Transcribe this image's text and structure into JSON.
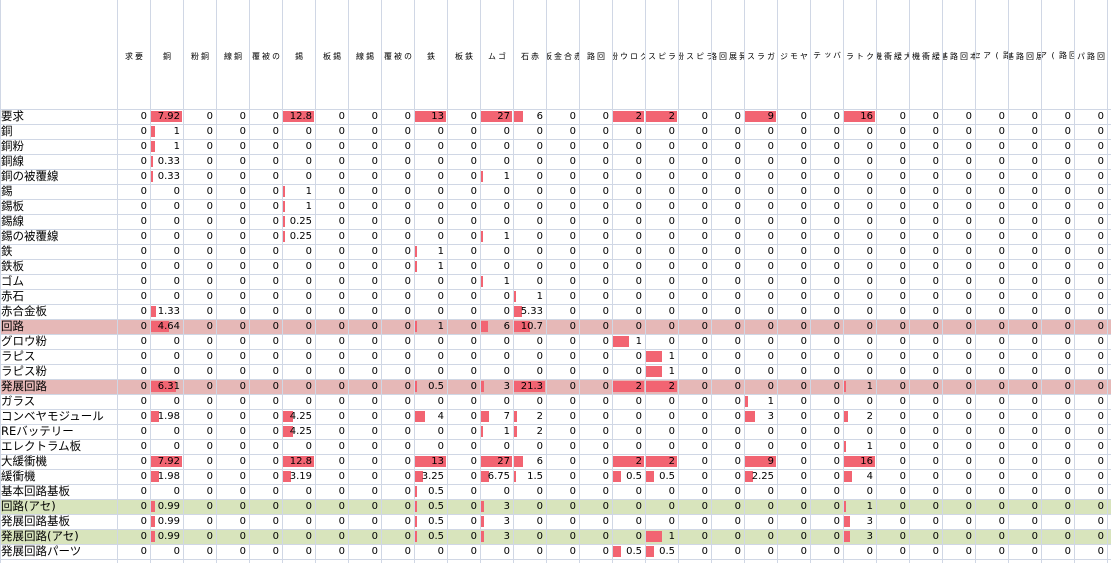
{
  "sheet": {
    "bar_color": "#f26472",
    "highlight_red": "#e6b8b7",
    "highlight_green": "#d8e4bc",
    "grid_color": "#d0d7e5"
  },
  "columns": [
    "要求",
    "銅",
    "銅粉",
    "銅線",
    "銅の被覆線",
    "錫",
    "錫板",
    "錫線",
    "錫の被覆線",
    "鉄",
    "鉄板",
    "ゴム",
    "赤石",
    "赤合金板",
    "回路",
    "グロウ粉",
    "ラピス",
    "ラピス粉",
    "発展回路",
    "ガラス",
    "コンベヤモジュール",
    "REバッテリー",
    "エレクトラム板",
    "大緩衝機",
    "緩衝機",
    "基本回路基板",
    "回路(アセ)",
    "発展回路基板",
    "発展回路(アセ)",
    "発展回路パーツ"
  ],
  "column_headers": [
    "要\n求",
    "銅",
    "銅\n粉",
    "銅\n線",
    "銅\nの\n被\n覆\n線",
    "錫",
    "錫\n板",
    "錫\n線",
    "錫\nの\n被\n覆\n線",
    "鉄",
    "鉄\n板",
    "ゴ\nム",
    "赤\n石",
    "赤\n合\n金\n板",
    "回\n路",
    "グ\nロ\nウ\n粉",
    "ラ\nピ\nス",
    "ラ\nピ\nス\n粉",
    "発\n展\n回\n路",
    "ガ\nラ\nス",
    "コ\nン\nベ\nヤ\nモ\nジ\nュ\nー\nル",
    "R\nE\nバ\nッ\nテ\nリ\nー",
    "エ\nレ\nク\nト\nラ\nム\n板",
    "大\n緩\n衝\n機",
    "緩\n衝\n機",
    "基\n本\n回\n路\n基\n板",
    "回\n路\n(\nア\nセ\n)",
    "発\n展\n回\n路\n基\n板",
    "発\n展\n回\n路\n(\nア\nセ\n)",
    "発\n展\n回\n路\nパ\nー\nツ"
  ],
  "rows": [
    {
      "label": "要求",
      "highlight": "none",
      "values": [
        "0",
        "7.92",
        "0",
        "0",
        "0",
        "12.8",
        "0",
        "0",
        "0",
        "13",
        "0",
        "27",
        "6",
        "0",
        "0",
        "2",
        "2",
        "0",
        "0",
        "9",
        "0",
        "0",
        "16",
        "0",
        "0",
        "0",
        "0",
        "0",
        "0",
        "0"
      ]
    },
    {
      "label": "銅",
      "highlight": "none",
      "values": [
        "0",
        "1",
        "0",
        "0",
        "0",
        "0",
        "0",
        "0",
        "0",
        "0",
        "0",
        "0",
        "0",
        "0",
        "0",
        "0",
        "0",
        "0",
        "0",
        "0",
        "0",
        "0",
        "0",
        "0",
        "0",
        "0",
        "0",
        "0",
        "0",
        "0"
      ]
    },
    {
      "label": "銅粉",
      "highlight": "none",
      "values": [
        "0",
        "1",
        "0",
        "0",
        "0",
        "0",
        "0",
        "0",
        "0",
        "0",
        "0",
        "0",
        "0",
        "0",
        "0",
        "0",
        "0",
        "0",
        "0",
        "0",
        "0",
        "0",
        "0",
        "0",
        "0",
        "0",
        "0",
        "0",
        "0",
        "0"
      ]
    },
    {
      "label": "銅線",
      "highlight": "none",
      "values": [
        "0",
        "0.33",
        "0",
        "0",
        "0",
        "0",
        "0",
        "0",
        "0",
        "0",
        "0",
        "0",
        "0",
        "0",
        "0",
        "0",
        "0",
        "0",
        "0",
        "0",
        "0",
        "0",
        "0",
        "0",
        "0",
        "0",
        "0",
        "0",
        "0",
        "0"
      ]
    },
    {
      "label": "銅の被覆線",
      "highlight": "none",
      "values": [
        "0",
        "0.33",
        "0",
        "0",
        "0",
        "0",
        "0",
        "0",
        "0",
        "0",
        "0",
        "1",
        "0",
        "0",
        "0",
        "0",
        "0",
        "0",
        "0",
        "0",
        "0",
        "0",
        "0",
        "0",
        "0",
        "0",
        "0",
        "0",
        "0",
        "0"
      ]
    },
    {
      "label": "錫",
      "highlight": "none",
      "values": [
        "0",
        "0",
        "0",
        "0",
        "0",
        "1",
        "0",
        "0",
        "0",
        "0",
        "0",
        "0",
        "0",
        "0",
        "0",
        "0",
        "0",
        "0",
        "0",
        "0",
        "0",
        "0",
        "0",
        "0",
        "0",
        "0",
        "0",
        "0",
        "0",
        "0"
      ]
    },
    {
      "label": "錫板",
      "highlight": "none",
      "values": [
        "0",
        "0",
        "0",
        "0",
        "0",
        "1",
        "0",
        "0",
        "0",
        "0",
        "0",
        "0",
        "0",
        "0",
        "0",
        "0",
        "0",
        "0",
        "0",
        "0",
        "0",
        "0",
        "0",
        "0",
        "0",
        "0",
        "0",
        "0",
        "0",
        "0"
      ]
    },
    {
      "label": "錫線",
      "highlight": "none",
      "values": [
        "0",
        "0",
        "0",
        "0",
        "0",
        "0.25",
        "0",
        "0",
        "0",
        "0",
        "0",
        "0",
        "0",
        "0",
        "0",
        "0",
        "0",
        "0",
        "0",
        "0",
        "0",
        "0",
        "0",
        "0",
        "0",
        "0",
        "0",
        "0",
        "0",
        "0"
      ]
    },
    {
      "label": "錫の被覆線",
      "highlight": "none",
      "values": [
        "0",
        "0",
        "0",
        "0",
        "0",
        "0.25",
        "0",
        "0",
        "0",
        "0",
        "0",
        "1",
        "0",
        "0",
        "0",
        "0",
        "0",
        "0",
        "0",
        "0",
        "0",
        "0",
        "0",
        "0",
        "0",
        "0",
        "0",
        "0",
        "0",
        "0"
      ]
    },
    {
      "label": "鉄",
      "highlight": "none",
      "values": [
        "0",
        "0",
        "0",
        "0",
        "0",
        "0",
        "0",
        "0",
        "0",
        "1",
        "0",
        "0",
        "0",
        "0",
        "0",
        "0",
        "0",
        "0",
        "0",
        "0",
        "0",
        "0",
        "0",
        "0",
        "0",
        "0",
        "0",
        "0",
        "0",
        "0"
      ]
    },
    {
      "label": "鉄板",
      "highlight": "none",
      "values": [
        "0",
        "0",
        "0",
        "0",
        "0",
        "0",
        "0",
        "0",
        "0",
        "1",
        "0",
        "0",
        "0",
        "0",
        "0",
        "0",
        "0",
        "0",
        "0",
        "0",
        "0",
        "0",
        "0",
        "0",
        "0",
        "0",
        "0",
        "0",
        "0",
        "0"
      ]
    },
    {
      "label": "ゴム",
      "highlight": "none",
      "values": [
        "0",
        "0",
        "0",
        "0",
        "0",
        "0",
        "0",
        "0",
        "0",
        "0",
        "0",
        "1",
        "0",
        "0",
        "0",
        "0",
        "0",
        "0",
        "0",
        "0",
        "0",
        "0",
        "0",
        "0",
        "0",
        "0",
        "0",
        "0",
        "0",
        "0"
      ]
    },
    {
      "label": "赤石",
      "highlight": "none",
      "values": [
        "0",
        "0",
        "0",
        "0",
        "0",
        "0",
        "0",
        "0",
        "0",
        "0",
        "0",
        "0",
        "1",
        "0",
        "0",
        "0",
        "0",
        "0",
        "0",
        "0",
        "0",
        "0",
        "0",
        "0",
        "0",
        "0",
        "0",
        "0",
        "0",
        "0"
      ]
    },
    {
      "label": "赤合金板",
      "highlight": "none",
      "values": [
        "0",
        "1.33",
        "0",
        "0",
        "0",
        "0",
        "0",
        "0",
        "0",
        "0",
        "0",
        "0",
        "5.33",
        "0",
        "0",
        "0",
        "0",
        "0",
        "0",
        "0",
        "0",
        "0",
        "0",
        "0",
        "0",
        "0",
        "0",
        "0",
        "0",
        "0"
      ]
    },
    {
      "label": "回路",
      "highlight": "red",
      "values": [
        "0",
        "4.64",
        "0",
        "0",
        "0",
        "0",
        "0",
        "0",
        "0",
        "1",
        "0",
        "6",
        "10.7",
        "0",
        "0",
        "0",
        "0",
        "0",
        "0",
        "0",
        "0",
        "0",
        "0",
        "0",
        "0",
        "0",
        "0",
        "0",
        "0",
        "0"
      ]
    },
    {
      "label": "グロウ粉",
      "highlight": "none",
      "values": [
        "0",
        "0",
        "0",
        "0",
        "0",
        "0",
        "0",
        "0",
        "0",
        "0",
        "0",
        "0",
        "0",
        "0",
        "0",
        "1",
        "0",
        "0",
        "0",
        "0",
        "0",
        "0",
        "0",
        "0",
        "0",
        "0",
        "0",
        "0",
        "0",
        "0"
      ]
    },
    {
      "label": "ラピス",
      "highlight": "none",
      "values": [
        "0",
        "0",
        "0",
        "0",
        "0",
        "0",
        "0",
        "0",
        "0",
        "0",
        "0",
        "0",
        "0",
        "0",
        "0",
        "0",
        "1",
        "0",
        "0",
        "0",
        "0",
        "0",
        "0",
        "0",
        "0",
        "0",
        "0",
        "0",
        "0",
        "0"
      ]
    },
    {
      "label": "ラピス粉",
      "highlight": "none",
      "values": [
        "0",
        "0",
        "0",
        "0",
        "0",
        "0",
        "0",
        "0",
        "0",
        "0",
        "0",
        "0",
        "0",
        "0",
        "0",
        "0",
        "1",
        "0",
        "0",
        "0",
        "0",
        "0",
        "0",
        "0",
        "0",
        "0",
        "0",
        "0",
        "0",
        "0"
      ]
    },
    {
      "label": "発展回路",
      "highlight": "red",
      "values": [
        "0",
        "6.31",
        "0",
        "0",
        "0",
        "0",
        "0",
        "0",
        "0",
        "0.5",
        "0",
        "3",
        "21.3",
        "0",
        "0",
        "2",
        "2",
        "0",
        "0",
        "0",
        "0",
        "0",
        "1",
        "0",
        "0",
        "0",
        "0",
        "0",
        "0",
        "0"
      ]
    },
    {
      "label": "ガラス",
      "highlight": "none",
      "values": [
        "0",
        "0",
        "0",
        "0",
        "0",
        "0",
        "0",
        "0",
        "0",
        "0",
        "0",
        "0",
        "0",
        "0",
        "0",
        "0",
        "0",
        "0",
        "0",
        "1",
        "0",
        "0",
        "0",
        "0",
        "0",
        "0",
        "0",
        "0",
        "0",
        "0"
      ]
    },
    {
      "label": "コンベヤモジュール",
      "highlight": "none",
      "values": [
        "0",
        "1.98",
        "0",
        "0",
        "0",
        "4.25",
        "0",
        "0",
        "0",
        "4",
        "0",
        "7",
        "2",
        "0",
        "0",
        "0",
        "0",
        "0",
        "0",
        "3",
        "0",
        "0",
        "2",
        "0",
        "0",
        "0",
        "0",
        "0",
        "0",
        "0"
      ]
    },
    {
      "label": "REバッテリー",
      "highlight": "none",
      "values": [
        "0",
        "0",
        "0",
        "0",
        "0",
        "4.25",
        "0",
        "0",
        "0",
        "0",
        "0",
        "1",
        "2",
        "0",
        "0",
        "0",
        "0",
        "0",
        "0",
        "0",
        "0",
        "0",
        "0",
        "0",
        "0",
        "0",
        "0",
        "0",
        "0",
        "0"
      ]
    },
    {
      "label": "エレクトラム板",
      "highlight": "none",
      "values": [
        "0",
        "0",
        "0",
        "0",
        "0",
        "0",
        "0",
        "0",
        "0",
        "0",
        "0",
        "0",
        "0",
        "0",
        "0",
        "0",
        "0",
        "0",
        "0",
        "0",
        "0",
        "0",
        "1",
        "0",
        "0",
        "0",
        "0",
        "0",
        "0",
        "0"
      ]
    },
    {
      "label": "大緩衝機",
      "highlight": "none",
      "values": [
        "0",
        "7.92",
        "0",
        "0",
        "0",
        "12.8",
        "0",
        "0",
        "0",
        "13",
        "0",
        "27",
        "6",
        "0",
        "0",
        "2",
        "2",
        "0",
        "0",
        "9",
        "0",
        "0",
        "16",
        "0",
        "0",
        "0",
        "0",
        "0",
        "0",
        "0"
      ]
    },
    {
      "label": "緩衝機",
      "highlight": "none",
      "values": [
        "0",
        "1.98",
        "0",
        "0",
        "0",
        "3.19",
        "0",
        "0",
        "0",
        "3.25",
        "0",
        "6.75",
        "1.5",
        "0",
        "0",
        "0.5",
        "0.5",
        "0",
        "0",
        "2.25",
        "0",
        "0",
        "4",
        "0",
        "0",
        "0",
        "0",
        "0",
        "0",
        "0"
      ]
    },
    {
      "label": "基本回路基板",
      "highlight": "none",
      "values": [
        "0",
        "0",
        "0",
        "0",
        "0",
        "0",
        "0",
        "0",
        "0",
        "0.5",
        "0",
        "0",
        "0",
        "0",
        "0",
        "0",
        "0",
        "0",
        "0",
        "0",
        "0",
        "0",
        "0",
        "0",
        "0",
        "0",
        "0",
        "0",
        "0",
        "0"
      ]
    },
    {
      "label": "回路(アセ)",
      "highlight": "green",
      "values": [
        "0",
        "0.99",
        "0",
        "0",
        "0",
        "0",
        "0",
        "0",
        "0",
        "0.5",
        "0",
        "3",
        "0",
        "0",
        "0",
        "0",
        "0",
        "0",
        "0",
        "0",
        "0",
        "0",
        "1",
        "0",
        "0",
        "0",
        "0",
        "0",
        "0",
        "0"
      ]
    },
    {
      "label": "発展回路基板",
      "highlight": "none",
      "values": [
        "0",
        "0.99",
        "0",
        "0",
        "0",
        "0",
        "0",
        "0",
        "0",
        "0.5",
        "0",
        "3",
        "0",
        "0",
        "0",
        "0",
        "0",
        "0",
        "0",
        "0",
        "0",
        "0",
        "3",
        "0",
        "0",
        "0",
        "0",
        "0",
        "0",
        "0"
      ]
    },
    {
      "label": "発展回路(アセ)",
      "highlight": "green",
      "values": [
        "0",
        "0.99",
        "0",
        "0",
        "0",
        "0",
        "0",
        "0",
        "0",
        "0.5",
        "0",
        "3",
        "0",
        "0",
        "0",
        "0",
        "1",
        "0",
        "0",
        "0",
        "0",
        "0",
        "3",
        "0",
        "0",
        "0",
        "0",
        "0",
        "0",
        "0"
      ]
    },
    {
      "label": "発展回路パーツ",
      "highlight": "none",
      "values": [
        "0",
        "0",
        "0",
        "0",
        "0",
        "0",
        "0",
        "0",
        "0",
        "0",
        "0",
        "0",
        "0",
        "0",
        "0",
        "0.5",
        "0.5",
        "0",
        "0",
        "0",
        "0",
        "0",
        "0",
        "0",
        "0",
        "0",
        "0",
        "0",
        "0",
        "0"
      ]
    }
  ]
}
